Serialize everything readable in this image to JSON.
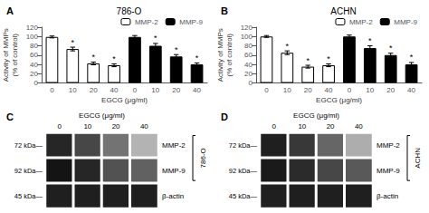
{
  "chart_data": [
    {
      "type": "bar",
      "panel_label": "A",
      "title": "786-O",
      "xlabel": "EGCG (μg/ml)",
      "ylabel": "Activity of MMPs\n(% of control)",
      "categories": [
        "0",
        "10",
        "20",
        "40",
        "0",
        "10",
        "20",
        "40"
      ],
      "series": [
        {
          "name": "MMP-2",
          "color": "white",
          "values": [
            99,
            73,
            42,
            38,
            null,
            null,
            null,
            null
          ],
          "errors": [
            2,
            4,
            3,
            3,
            null,
            null,
            null,
            null
          ],
          "annotations": [
            null,
            "*",
            "*",
            "*",
            null,
            null,
            null,
            null
          ]
        },
        {
          "name": "MMP-9",
          "color": "black",
          "values": [
            null,
            null,
            null,
            null,
            99,
            80,
            57,
            40
          ],
          "errors": [
            null,
            null,
            null,
            null,
            3,
            5,
            4,
            3
          ],
          "annotations": [
            null,
            null,
            null,
            null,
            null,
            "*",
            "*",
            "*"
          ]
        }
      ],
      "ylim": [
        0,
        120
      ],
      "yticks": [
        0,
        20,
        40,
        60,
        80,
        100,
        120
      ],
      "grid": false,
      "legend": "upper right"
    },
    {
      "type": "bar",
      "panel_label": "B",
      "title": "ACHN",
      "xlabel": "EGCG (μg/ml)",
      "ylabel": "Activity of MMPs\n(% of control)",
      "categories": [
        "0",
        "10",
        "20",
        "40",
        "0",
        "10",
        "20",
        "40"
      ],
      "series": [
        {
          "name": "MMP-2",
          "color": "white",
          "values": [
            100,
            65,
            35,
            38,
            null,
            null,
            null,
            null
          ],
          "errors": [
            2,
            4,
            3,
            3,
            null,
            null,
            null,
            null
          ],
          "annotations": [
            null,
            "*",
            "*",
            "*",
            null,
            null,
            null,
            null
          ]
        },
        {
          "name": "MMP-9",
          "color": "black",
          "values": [
            null,
            null,
            null,
            null,
            100,
            75,
            60,
            40
          ],
          "errors": [
            null,
            null,
            null,
            null,
            3,
            5,
            4,
            4
          ],
          "annotations": [
            null,
            null,
            null,
            null,
            null,
            "*",
            "*",
            "*"
          ]
        }
      ],
      "ylim": [
        0,
        120
      ],
      "yticks": [
        0,
        20,
        40,
        60,
        80,
        100,
        120
      ],
      "grid": false,
      "legend": "upper right"
    },
    {
      "type": "heatmap",
      "panel_label": "C",
      "xlabel": "EGCG (μg/ml)",
      "categories": [
        "0",
        "10",
        "20",
        "40"
      ],
      "rows": [
        {
          "name": "MMP-2",
          "kda": "72 kDa—",
          "values": [
            0.85,
            0.72,
            0.55,
            0.3
          ]
        },
        {
          "name": "MMP-9",
          "kda": "92 kDa—",
          "values": [
            0.92,
            0.85,
            0.68,
            0.62
          ]
        },
        {
          "name": "β-actin",
          "kda": "45 kDa—",
          "values": [
            0.88,
            0.88,
            0.88,
            0.88
          ]
        }
      ],
      "zlim": [
        0,
        1
      ],
      "color": "black",
      "bracket": {
        "label": "786-O",
        "rows": [
          "MMP-2",
          "MMP-9"
        ]
      }
    },
    {
      "type": "heatmap",
      "panel_label": "D",
      "xlabel": "EGCG (μg/ml)",
      "categories": [
        "0",
        "10",
        "20",
        "40"
      ],
      "rows": [
        {
          "name": "MMP-2",
          "kda": "72 kDa—",
          "values": [
            0.88,
            0.78,
            0.6,
            0.32
          ]
        },
        {
          "name": "MMP-9",
          "kda": "92 kDa—",
          "values": [
            0.9,
            0.83,
            0.72,
            0.65
          ]
        },
        {
          "name": "β-actin",
          "kda": "45 kDa—",
          "values": [
            0.88,
            0.88,
            0.88,
            0.88
          ]
        }
      ],
      "zlim": [
        0,
        1
      ],
      "color": "black",
      "bracket": {
        "label": "ACHN",
        "rows": [
          "MMP-2",
          "MMP-9"
        ]
      }
    }
  ]
}
